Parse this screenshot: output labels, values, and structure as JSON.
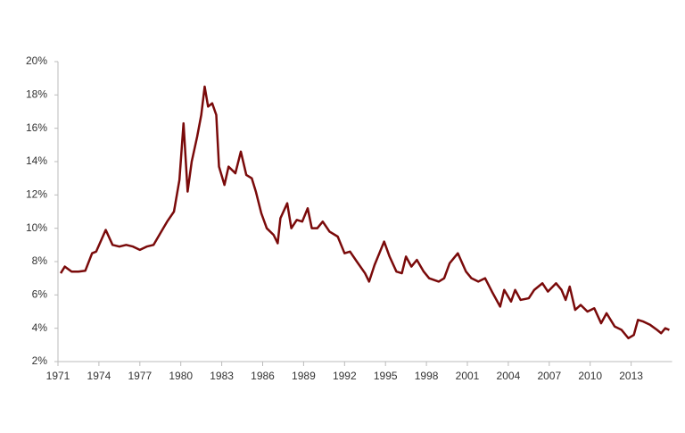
{
  "chart_data": {
    "type": "line",
    "x": [
      1971.2,
      1971.5,
      1972,
      1972.5,
      1973,
      1973.5,
      1973.8,
      1974.5,
      1975,
      1975.5,
      1976,
      1976.5,
      1977,
      1977.5,
      1978,
      1978.5,
      1979,
      1979.5,
      1979.9,
      1980.2,
      1980.5,
      1980.8,
      1981.2,
      1981.5,
      1981.75,
      1982,
      1982.3,
      1982.6,
      1982.8,
      1983.2,
      1983.5,
      1984,
      1984.4,
      1984.8,
      1985.2,
      1985.5,
      1985.9,
      1986.3,
      1986.8,
      1987.1,
      1987.3,
      1987.8,
      1988.1,
      1988.5,
      1988.9,
      1989.3,
      1989.6,
      1990,
      1990.4,
      1990.9,
      1991.5,
      1992,
      1992.4,
      1992.9,
      1993.5,
      1993.8,
      1994.2,
      1994.6,
      1994.9,
      1995.3,
      1995.8,
      1996.2,
      1996.5,
      1996.9,
      1997.3,
      1997.8,
      1998.2,
      1998.9,
      1999.3,
      1999.7,
      2000.3,
      2000.9,
      2001.3,
      2001.8,
      2002.3,
      2002.8,
      2003.4,
      2003.7,
      2004.2,
      2004.5,
      2004.9,
      2005.5,
      2005.9,
      2006.5,
      2006.9,
      2007.5,
      2007.9,
      2008.2,
      2008.5,
      2008.9,
      2009.3,
      2009.8,
      2010.3,
      2010.8,
      2011.2,
      2011.8,
      2012.3,
      2012.8,
      2013.2,
      2013.5,
      2013.9,
      2014.4,
      2014.9,
      2015.2,
      2015.5,
      2015.8
    ],
    "series": [
      {
        "color": "#7a0a0a",
        "values": [
          7.3,
          7.7,
          7.4,
          7.4,
          7.45,
          8.5,
          8.6,
          9.9,
          9.0,
          8.9,
          9.0,
          8.9,
          8.7,
          8.9,
          9.0,
          9.7,
          10.4,
          11.0,
          12.9,
          16.3,
          12.2,
          14.0,
          15.5,
          16.8,
          18.5,
          17.3,
          17.5,
          16.8,
          13.7,
          12.6,
          13.7,
          13.3,
          14.6,
          13.2,
          13.0,
          12.2,
          10.9,
          10.0,
          9.6,
          9.1,
          10.6,
          11.5,
          10.0,
          10.5,
          10.4,
          11.2,
          10.0,
          10.0,
          10.4,
          9.8,
          9.5,
          8.5,
          8.6,
          8.0,
          7.3,
          6.8,
          7.8,
          8.6,
          9.2,
          8.3,
          7.4,
          7.3,
          8.3,
          7.7,
          8.1,
          7.4,
          7.0,
          6.8,
          7.0,
          7.9,
          8.5,
          7.4,
          7.0,
          6.8,
          7.0,
          6.2,
          5.3,
          6.3,
          5.6,
          6.3,
          5.7,
          5.8,
          6.3,
          6.7,
          6.2,
          6.7,
          6.3,
          5.7,
          6.5,
          5.1,
          5.4,
          5.0,
          5.2,
          4.3,
          4.9,
          4.1,
          3.9,
          3.4,
          3.6,
          4.5,
          4.4,
          4.2,
          3.9,
          3.7,
          4.0,
          3.9
        ]
      }
    ],
    "xlim": [
      1971,
      2016
    ],
    "xticks": [
      1971,
      1974,
      1977,
      1980,
      1983,
      1986,
      1989,
      1992,
      1995,
      1998,
      2001,
      2004,
      2007,
      2010,
      2013
    ],
    "ylim": [
      2,
      20
    ],
    "yticks": [
      {
        "value": 2,
        "label": "2%"
      },
      {
        "value": 4,
        "label": "4%"
      },
      {
        "value": 6,
        "label": "6%"
      },
      {
        "value": 8,
        "label": "8%"
      },
      {
        "value": 10,
        "label": "10%"
      },
      {
        "value": 12,
        "label": "12%"
      },
      {
        "value": 14,
        "label": "14%"
      },
      {
        "value": 16,
        "label": "16%"
      },
      {
        "value": 18,
        "label": "18%"
      },
      {
        "value": 20,
        "label": "20%"
      }
    ],
    "grid": false
  }
}
